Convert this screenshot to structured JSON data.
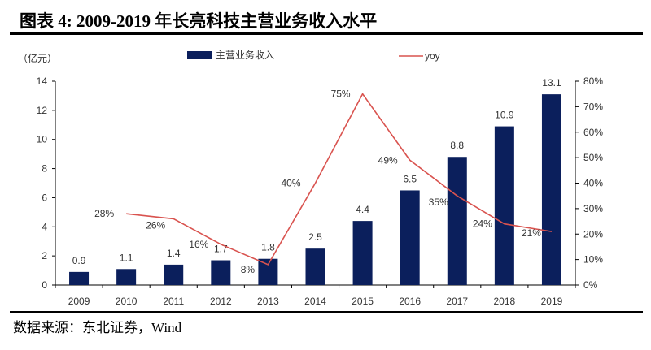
{
  "title": "图表 4:  2009-2019 年长亮科技主营业务收入水平",
  "source": "数据来源：东北证券，Wind",
  "chart_data": {
    "type": "bar+line",
    "title": "2009-2019 年长亮科技主营业务收入水平",
    "unit_label": "（亿元）",
    "categories": [
      "2009",
      "2010",
      "2011",
      "2012",
      "2013",
      "2014",
      "2015",
      "2016",
      "2017",
      "2018",
      "2019"
    ],
    "series": [
      {
        "name": "主营业务收入",
        "type": "bar",
        "axis": "left",
        "color": "#0b1f5c",
        "values": [
          0.9,
          1.1,
          1.4,
          1.7,
          1.8,
          2.5,
          4.4,
          6.5,
          8.8,
          10.9,
          13.1
        ],
        "labels": [
          "0.9",
          "1.1",
          "1.4",
          "1.7",
          "1.8",
          "2.5",
          "4.4",
          "6.5",
          "8.8",
          "10.9",
          "13.1"
        ]
      },
      {
        "name": "yoy",
        "type": "line",
        "axis": "right",
        "color": "#d9534f",
        "values": [
          null,
          28,
          26,
          16,
          8,
          40,
          75,
          49,
          35,
          24,
          21
        ],
        "labels": [
          "",
          "28%",
          "26%",
          "16%",
          "8%",
          "40%",
          "75%",
          "49%",
          "35%",
          "24%",
          "21%"
        ]
      }
    ],
    "left_axis": {
      "range": [
        0,
        14
      ],
      "ticks": [
        "0",
        "2",
        "4",
        "6",
        "8",
        "10",
        "12",
        "14"
      ]
    },
    "right_axis": {
      "range": [
        0,
        80
      ],
      "ticks": [
        "0%",
        "10%",
        "20%",
        "30%",
        "40%",
        "50%",
        "60%",
        "70%",
        "80%"
      ]
    },
    "legend": "top",
    "grid": false
  }
}
